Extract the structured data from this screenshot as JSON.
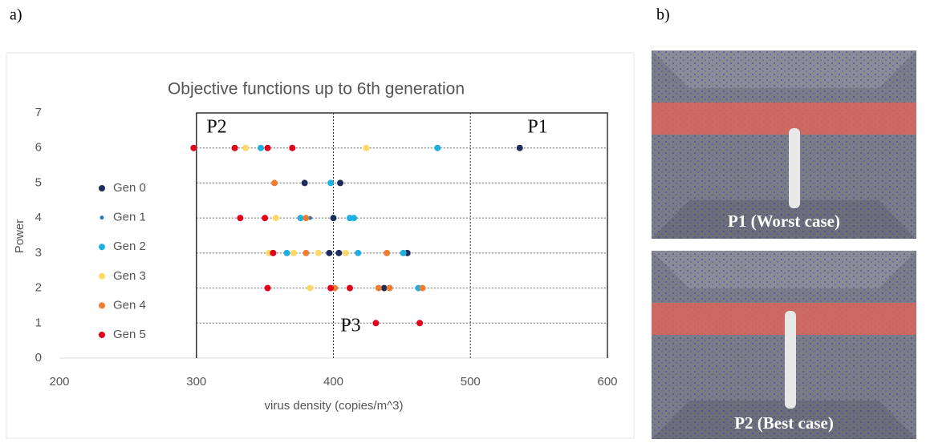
{
  "panels": {
    "a": "a)",
    "b": "b)"
  },
  "images": [
    {
      "caption": "P1 (Worst case)"
    },
    {
      "caption": "P2 (Best case)"
    }
  ],
  "chart_data": {
    "type": "scatter",
    "title": "Objective functions  up to 6th generation",
    "x_label": "virus density (copies/m^3)",
    "y_label": "Power",
    "xlim": [
      200,
      600
    ],
    "ylim": [
      0,
      7
    ],
    "xticks": [
      200,
      300,
      400,
      500,
      600
    ],
    "yticks": [
      0,
      1,
      2,
      3,
      4,
      5,
      6,
      7
    ],
    "grid": true,
    "annotations": [
      "P2",
      "P1",
      "P3"
    ],
    "series": [
      {
        "name": "Gen 0",
        "color": "#1f2d5c",
        "x": [
          536,
          379,
          405,
          400,
          397,
          404,
          454,
          437
        ],
        "y": [
          6,
          5,
          5,
          4,
          3,
          3,
          3,
          2
        ]
      },
      {
        "name": "Gen 1",
        "color": "#2e75b6",
        "x": [
          383,
          452
        ],
        "y": [
          4,
          3
        ]
      },
      {
        "name": "Gen 2",
        "color": "#1fb0e0",
        "x": [
          476,
          347,
          398,
          376,
          412,
          415,
          366,
          418,
          451,
          462
        ],
        "y": [
          6,
          6,
          5,
          4,
          4,
          4,
          3,
          3,
          3,
          2
        ]
      },
      {
        "name": "Gen 3",
        "color": "#ffd966",
        "x": [
          336,
          424,
          358,
          353,
          371,
          389,
          409,
          383
        ],
        "y": [
          6,
          6,
          4,
          3,
          3,
          3,
          3,
          2
        ]
      },
      {
        "name": "Gen 4",
        "color": "#ed7d31",
        "x": [
          357,
          380,
          380,
          439,
          401,
          433,
          441,
          465
        ],
        "y": [
          5,
          4,
          3,
          3,
          2,
          2,
          2,
          2
        ]
      },
      {
        "name": "Gen 5",
        "color": "#e3001b",
        "x": [
          298,
          328,
          352,
          370,
          332,
          350,
          356,
          352,
          398,
          412,
          431,
          463
        ],
        "y": [
          6,
          6,
          6,
          6,
          4,
          4,
          3,
          2,
          2,
          2,
          1,
          1
        ]
      }
    ]
  }
}
